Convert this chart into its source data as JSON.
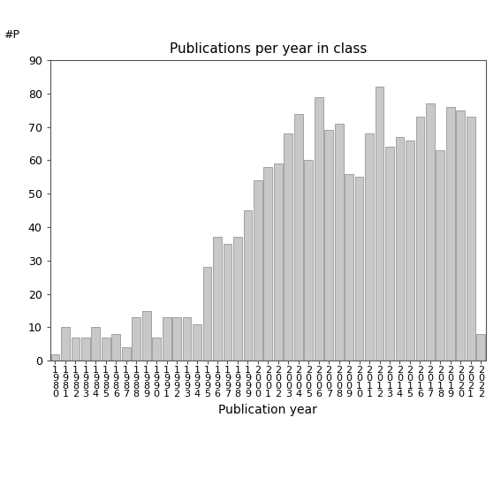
{
  "years": [
    1980,
    1981,
    1982,
    1983,
    1984,
    1985,
    1986,
    1987,
    1988,
    1989,
    1990,
    1991,
    1992,
    1993,
    1994,
    1995,
    1996,
    1997,
    1998,
    1999,
    2000,
    2001,
    2002,
    2003,
    2004,
    2005,
    2006,
    2007,
    2008,
    2009,
    2010,
    2011,
    2012,
    2013,
    2014,
    2015,
    2016,
    2017,
    2018,
    2019,
    2020,
    2021,
    2022
  ],
  "values": [
    2,
    10,
    7,
    7,
    10,
    7,
    8,
    4,
    13,
    15,
    7,
    13,
    13,
    13,
    11,
    28,
    37,
    35,
    37,
    45,
    54,
    58,
    59,
    68,
    74,
    60,
    79,
    69,
    71,
    56,
    55,
    68,
    82,
    64,
    67,
    66,
    73,
    77,
    63,
    76,
    75,
    73,
    8
  ],
  "title": "Publications per year in class",
  "xlabel": "Publication year",
  "ylabel_label": "#P",
  "ylim": [
    0,
    90
  ],
  "yticks": [
    0,
    10,
    20,
    30,
    40,
    50,
    60,
    70,
    80,
    90
  ],
  "bar_color": "#c8c8c8",
  "bar_edgecolor": "#888888",
  "background_color": "#ffffff",
  "title_fontsize": 11,
  "label_fontsize": 10,
  "tick_fontsize": 9
}
